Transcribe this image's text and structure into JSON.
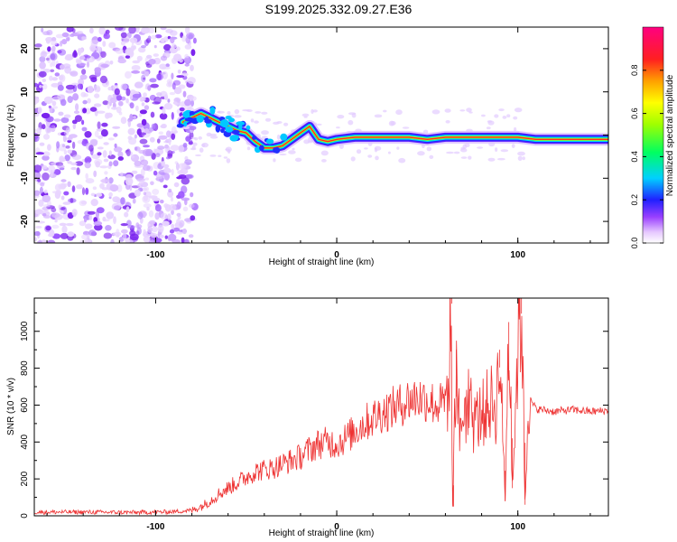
{
  "title": "S199.2025.332.09.27.E36",
  "chart_data": [
    {
      "type": "heatmap",
      "xlabel": "Height of straight line (km)",
      "ylabel": "Frequency (Hz)",
      "xlim": [
        -167,
        150
      ],
      "ylim": [
        -25,
        25
      ],
      "x_ticks": [
        -100,
        0,
        100
      ],
      "y_ticks": [
        -20,
        -10,
        0,
        10,
        20
      ],
      "colorbar": {
        "label": "Normalized spectral amplitude",
        "range": [
          0,
          1
        ],
        "ticks": [
          0.0,
          0.2,
          0.4,
          0.6,
          0.8
        ]
      },
      "signal_ridge": {
        "x": [
          -85,
          -80,
          -75,
          -70,
          -65,
          -60,
          -55,
          -50,
          -45,
          -40,
          -35,
          -30,
          -25,
          -20,
          -15,
          -10,
          -5,
          0,
          10,
          20,
          30,
          40,
          50,
          60,
          70,
          80,
          90,
          100,
          110,
          120,
          130,
          140,
          150
        ],
        "frequency": [
          3,
          4,
          5,
          4,
          3,
          2,
          1,
          0.5,
          -1.5,
          -3,
          -3,
          -2.5,
          -1,
          0.5,
          2,
          -1,
          -1.5,
          -1,
          -0.5,
          -0.5,
          -0.5,
          -0.5,
          -1,
          -0.5,
          -0.5,
          -0.5,
          -0.5,
          -0.5,
          -1,
          -1,
          -1,
          -1,
          -1
        ]
      },
      "noise_region_x": [
        -167,
        -80
      ]
    },
    {
      "type": "line",
      "xlabel": "Height of straight line (km)",
      "ylabel": "SNR (10 * v/v)",
      "xlim": [
        -167,
        150
      ],
      "ylim": [
        0,
        1180
      ],
      "x_ticks": [
        -100,
        0,
        100
      ],
      "y_ticks": [
        0,
        200,
        400,
        600,
        800,
        1000
      ],
      "series": [
        {
          "name": "SNR",
          "color": "#ee3333",
          "x": [
            -167,
            -140,
            -110,
            -90,
            -80,
            -75,
            -70,
            -65,
            -60,
            -55,
            -50,
            -45,
            -40,
            -35,
            -30,
            -25,
            -20,
            -15,
            -10,
            -5,
            0,
            5,
            10,
            15,
            20,
            25,
            30,
            35,
            40,
            45,
            50,
            55,
            60,
            62,
            63,
            64,
            66,
            68,
            70,
            75,
            80,
            85,
            88,
            90,
            93,
            95,
            97,
            100,
            102,
            104,
            106,
            110,
            120,
            130,
            140,
            150
          ],
          "y": [
            20,
            20,
            18,
            22,
            30,
            50,
            80,
            120,
            150,
            180,
            210,
            240,
            250,
            260,
            280,
            300,
            320,
            360,
            390,
            400,
            390,
            420,
            460,
            500,
            530,
            560,
            580,
            600,
            630,
            640,
            630,
            600,
            610,
            700,
            1200,
            50,
            900,
            400,
            600,
            500,
            550,
            620,
            580,
            900,
            80,
            1050,
            150,
            900,
            1180,
            60,
            640,
            580,
            565,
            575,
            565,
            570
          ]
        }
      ]
    }
  ]
}
